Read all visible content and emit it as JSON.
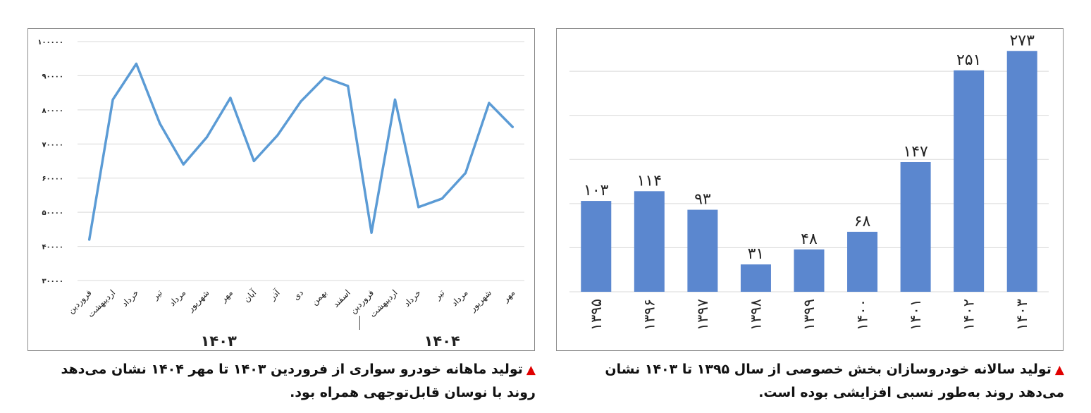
{
  "captions": {
    "line": [
      "تولید ماهانه خودرو سواری از فروردین ۱۴۰۳ تا مهر ۱۴۰۴ نشان می‌دهد",
      "روند با نوسان قابل‌توجهی همراه بود."
    ],
    "bar": [
      "تولید سالانه خودروسازان بخش خصوصی از سال ۱۳۹۵ تا ۱۴۰۳ نشان",
      "می‌دهد روند به‌طور نسبی افزایشی بوده است."
    ]
  },
  "colors": {
    "line": "#5b9bd5",
    "bar": "#5b87cf",
    "grid": "#d9d9d9",
    "marker": "#e00000"
  },
  "chart_data": [
    {
      "type": "line",
      "title": "",
      "xlabel": "",
      "ylabel": "",
      "ylim": [
        30000,
        100000
      ],
      "yticks": [
        30000,
        40000,
        50000,
        60000,
        70000,
        80000,
        90000,
        100000
      ],
      "ytick_labels": [
        "۳۰۰۰۰",
        "۴۰۰۰۰",
        "۵۰۰۰۰",
        "۶۰۰۰۰",
        "۷۰۰۰۰",
        "۸۰۰۰۰",
        "۹۰۰۰۰",
        "۱۰۰۰۰۰"
      ],
      "categories": [
        "فروردین",
        "اردیبهشت",
        "خرداد",
        "تیر",
        "مرداد",
        "شهریور",
        "مهر",
        "آبان",
        "آذر",
        "دی",
        "بهمن",
        "اسفند",
        "فروردین",
        "اردیبهشت",
        "خرداد",
        "تیر",
        "مرداد",
        "شهریور",
        "مهر"
      ],
      "groups": [
        {
          "label": "۱۴۰۳",
          "start": 0,
          "end": 11
        },
        {
          "label": "۱۴۰۴",
          "start": 12,
          "end": 18
        }
      ],
      "values": [
        42000,
        83000,
        93500,
        76000,
        64000,
        72000,
        83500,
        65000,
        72500,
        82500,
        89500,
        87000,
        44000,
        83000,
        51500,
        54000,
        61500,
        82000,
        75000
      ],
      "grid": true,
      "legend": "none"
    },
    {
      "type": "bar",
      "title": "",
      "xlabel": "",
      "ylabel": "",
      "ylim": [
        0,
        290
      ],
      "grid": true,
      "legend": "none",
      "categories": [
        "۱۳۹۵",
        "۱۳۹۶",
        "۱۳۹۷",
        "۱۳۹۸",
        "۱۳۹۹",
        "۱۴۰۰",
        "۱۴۰۱",
        "۱۴۰۲",
        "۱۴۰۳"
      ],
      "values": [
        103,
        114,
        93,
        31,
        48,
        68,
        147,
        251,
        273
      ],
      "value_labels": [
        "۱۰۳",
        "۱۱۴",
        "۹۳",
        "۳۱",
        "۴۸",
        "۶۸",
        "۱۴۷",
        "۲۵۱",
        "۲۷۳"
      ]
    }
  ]
}
